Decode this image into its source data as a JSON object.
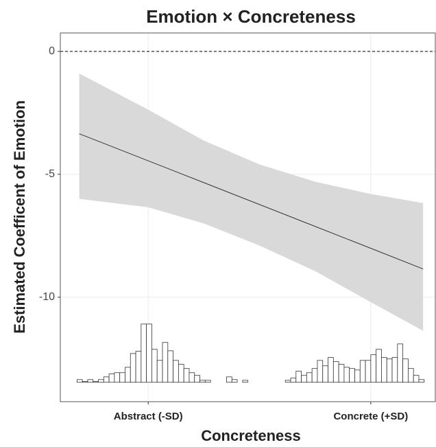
{
  "chart_data": {
    "type": "band_line",
    "title": "Emotion × Concreteness",
    "x_label": "Concreteness",
    "y_label": "Estimated Coefficent of Emotion",
    "xlim": [
      -1.79,
      1.58
    ],
    "ylim": [
      -14.25,
      0.75
    ],
    "xticks": [
      {
        "value": -1,
        "label": "Abstract (-SD)"
      },
      {
        "value": 1,
        "label": "Concrete (+SD)"
      }
    ],
    "yticks": [
      -10,
      -5,
      0
    ],
    "grid": true,
    "reference_line": 0,
    "x": [
      -1.62,
      -1,
      -0.5,
      0,
      0.5,
      1,
      1.47
    ],
    "values": [
      -3.35,
      -4.45,
      -5.34,
      -6.23,
      -7.12,
      -8.01,
      -8.85
    ],
    "upper": [
      -0.9,
      -2.37,
      -3.63,
      -4.6,
      -5.3,
      -5.8,
      -6.17
    ],
    "lower": [
      -6.0,
      -6.34,
      -7.0,
      -7.9,
      -8.94,
      -10.2,
      -11.37
    ],
    "line_color": "#333333",
    "band_color": "#d9d9d9",
    "histogram": {
      "base": -13.46,
      "bins": [
        -1.64,
        -1.592,
        -1.544,
        -1.496,
        -1.448,
        -1.4,
        -1.352,
        -1.304,
        -1.256,
        -1.208,
        -1.16,
        -1.112,
        -1.064,
        -1.016,
        -0.968,
        -0.92,
        -0.872,
        -0.824,
        -0.776,
        -0.728,
        -0.68,
        -0.632,
        -0.584,
        -0.536,
        -0.488,
        -0.44,
        -0.392,
        -0.344,
        -0.296,
        -0.248,
        -0.2,
        -0.152,
        -0.104,
        -0.056,
        -0.008,
        0.04,
        0.088,
        0.136,
        0.184,
        0.232,
        0.28,
        0.328,
        0.376,
        0.424,
        0.472,
        0.52,
        0.568,
        0.616,
        0.664,
        0.712,
        0.76,
        0.808,
        0.856,
        0.904,
        0.952,
        1.0,
        1.048,
        1.096,
        1.144,
        1.192,
        1.24,
        1.288,
        1.336,
        1.384,
        1.432,
        1.48
      ],
      "values": [
        0.11,
        0.03,
        0.11,
        0.03,
        0.11,
        0.22,
        0.34,
        0.39,
        0.39,
        0.61,
        1.17,
        1.26,
        2.37,
        2.37,
        1.34,
        0.89,
        1.62,
        1.28,
        0.89,
        0.73,
        0.56,
        0.39,
        0.28,
        0.08,
        0.08,
        0,
        0,
        0,
        0.22,
        0.11,
        0,
        0.08,
        0,
        0,
        0,
        0,
        0,
        0,
        0,
        0.08,
        0.17,
        0.45,
        0.28,
        0.39,
        0.56,
        0.89,
        0.67,
        1.01,
        0.84,
        0.73,
        0.61,
        0.56,
        0.5,
        0.89,
        0.89,
        1.12,
        1.34,
        1.01,
        0.95,
        1.01,
        1.56,
        0.95,
        0.56,
        0.28,
        0.11
      ]
    }
  }
}
